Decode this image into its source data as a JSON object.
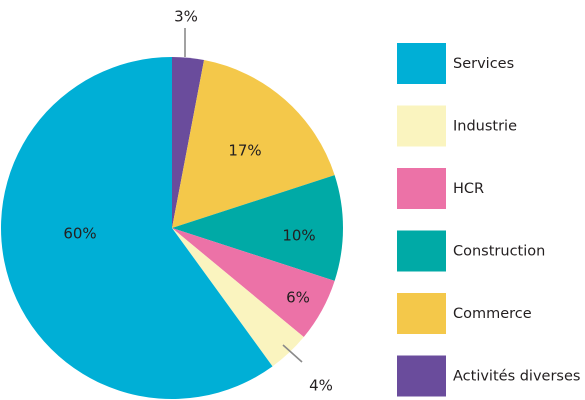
{
  "chart_data": {
    "type": "pie",
    "start": "12 o'clock",
    "direction": "clockwise",
    "legend_position": "right",
    "slices": [
      {
        "name": "Activités diverses",
        "value": 3,
        "label": "3%",
        "color": "#6a4c9c"
      },
      {
        "name": "Commerce",
        "value": 17,
        "label": "17%",
        "color": "#f4c84a"
      },
      {
        "name": "Construction",
        "value": 10,
        "label": "10%",
        "color": "#00aaa6"
      },
      {
        "name": "HCR",
        "value": 6,
        "label": "6%",
        "color": "#ec72a7"
      },
      {
        "name": "Industrie",
        "value": 4,
        "label": "4%",
        "color": "#faf4bf"
      },
      {
        "name": "Services",
        "value": 60,
        "label": "60%",
        "color": "#00afd6"
      }
    ],
    "legend": [
      {
        "label": "Services",
        "color": "#00afd6"
      },
      {
        "label": "Industrie",
        "color": "#faf4bf"
      },
      {
        "label": "HCR",
        "color": "#ec72a7"
      },
      {
        "label": "Construction",
        "color": "#00aaa6"
      },
      {
        "label": "Commerce",
        "color": "#f4c84a"
      },
      {
        "label": "Activités diverses",
        "color": "#6a4c9c"
      }
    ]
  }
}
